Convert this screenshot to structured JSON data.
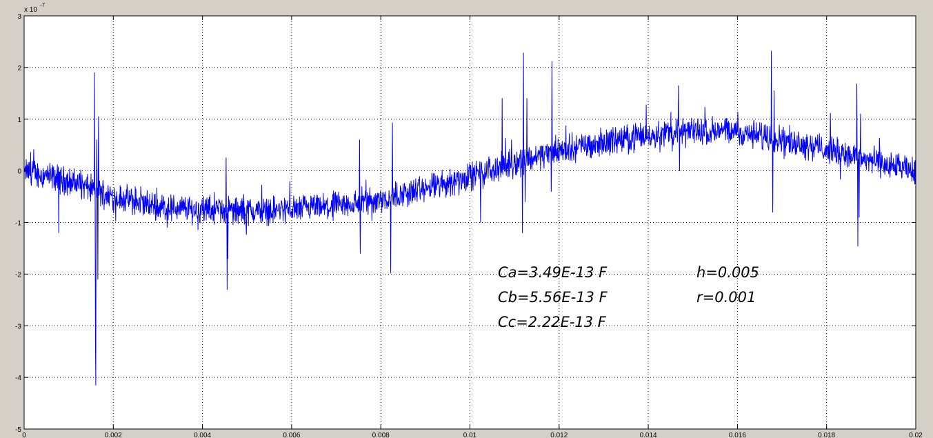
{
  "chart_data": {
    "type": "line",
    "title": "",
    "xlabel": "",
    "ylabel": "",
    "xlim": [
      0,
      0.02
    ],
    "ylim": [
      -5,
      3
    ],
    "x_ticks": [
      "0",
      "0.002",
      "0.004",
      "0.006",
      "0.008",
      "0.01",
      "0.012",
      "0.014",
      "0.016",
      "0.018",
      "0.02"
    ],
    "y_ticks": [
      "-5",
      "-4",
      "-3",
      "-2",
      "-1",
      "0",
      "1",
      "2",
      "3"
    ],
    "y_multiplier": "x 10",
    "y_exponent": "-7",
    "grid": true,
    "line_color": "#0000ff",
    "background_color": "#ffffff",
    "figure_color": "#d4d0c8",
    "series": [
      {
        "trend": {
          "x": [
            0,
            0.001,
            0.002,
            0.003,
            0.004,
            0.005,
            0.006,
            0.007,
            0.008,
            0.009,
            0.01,
            0.011,
            0.012,
            0.013,
            0.014,
            0.015,
            0.016,
            0.017,
            0.018,
            0.019,
            0.0201
          ],
          "y": [
            0,
            -0.2,
            -0.5,
            -0.7,
            -0.75,
            -0.78,
            -0.75,
            -0.7,
            -0.55,
            -0.35,
            -0.1,
            0.15,
            0.4,
            0.55,
            0.7,
            0.78,
            0.75,
            0.62,
            0.42,
            0.2,
            -0.05
          ]
        },
        "noise_amplitude": 0.2,
        "spikes": [
          {
            "x": 0.00078,
            "y": -1.2
          },
          {
            "x": 0.00158,
            "y": 1.9
          },
          {
            "x": 0.0016,
            "y": -3.3
          },
          {
            "x": 0.00161,
            "y": -4.15
          },
          {
            "x": 0.00163,
            "y": 0.6
          },
          {
            "x": 0.00165,
            "y": -2.1
          },
          {
            "x": 0.00167,
            "y": 1.05
          },
          {
            "x": 0.00453,
            "y": 0.25
          },
          {
            "x": 0.00455,
            "y": -2.3
          },
          {
            "x": 0.00457,
            "y": -1.7
          },
          {
            "x": 0.00752,
            "y": 0.6
          },
          {
            "x": 0.00754,
            "y": -1.6
          },
          {
            "x": 0.00822,
            "y": -1.98
          },
          {
            "x": 0.00826,
            "y": 0.93
          },
          {
            "x": 0.01024,
            "y": -1.0
          },
          {
            "x": 0.01072,
            "y": 1.4
          },
          {
            "x": 0.01118,
            "y": -1.2
          },
          {
            "x": 0.0112,
            "y": 2.28
          },
          {
            "x": 0.01124,
            "y": -0.6
          },
          {
            "x": 0.01128,
            "y": 1.4
          },
          {
            "x": 0.01182,
            "y": -0.4
          },
          {
            "x": 0.01184,
            "y": 2.12
          },
          {
            "x": 0.01186,
            "y": 0.2
          },
          {
            "x": 0.01468,
            "y": 1.65
          },
          {
            "x": 0.0147,
            "y": 0.0
          },
          {
            "x": 0.01676,
            "y": 2.32
          },
          {
            "x": 0.01679,
            "y": -0.8
          },
          {
            "x": 0.01682,
            "y": 1.55
          },
          {
            "x": 0.01868,
            "y": 1.68
          },
          {
            "x": 0.0187,
            "y": -1.46
          },
          {
            "x": 0.01873,
            "y": -0.9
          },
          {
            "x": 0.01876,
            "y": 1.1
          }
        ]
      }
    ]
  },
  "annotations": {
    "ca": "Ca=3.49E-13 F",
    "cb": "Cb=5.56E-13 F",
    "cc": "Cc=2.22E-13 F",
    "h": "h=0.005",
    "r": "r=0.001"
  }
}
